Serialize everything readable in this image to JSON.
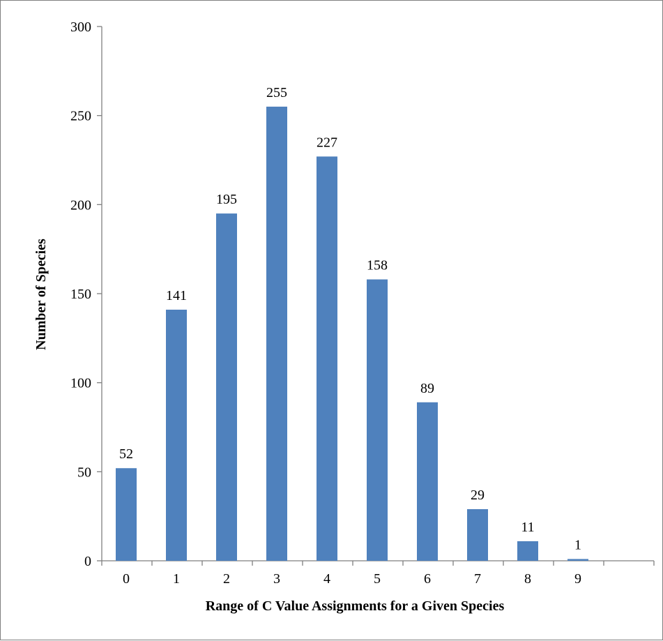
{
  "chart_data": {
    "type": "bar",
    "categories": [
      "0",
      "1",
      "2",
      "3",
      "4",
      "5",
      "6",
      "7",
      "8",
      "9"
    ],
    "values": [
      52,
      141,
      195,
      255,
      227,
      158,
      89,
      29,
      11,
      1
    ],
    "data_labels": [
      "52",
      "141",
      "195",
      "255",
      "227",
      "158",
      "89",
      "29",
      "11",
      "1"
    ],
    "title": "",
    "xlabel": "Range of C Value Assignments for a Given Species",
    "ylabel": "Number of Species",
    "ylim": [
      0,
      300
    ],
    "yticks": [
      0,
      50,
      100,
      150,
      200,
      250,
      300
    ],
    "ytick_labels": [
      "0",
      "50",
      "100",
      "150",
      "200",
      "250",
      "300"
    ],
    "grid": false,
    "legend": "none",
    "bar_color": "#4f81bd",
    "axis_color": "#7f7f7f"
  }
}
